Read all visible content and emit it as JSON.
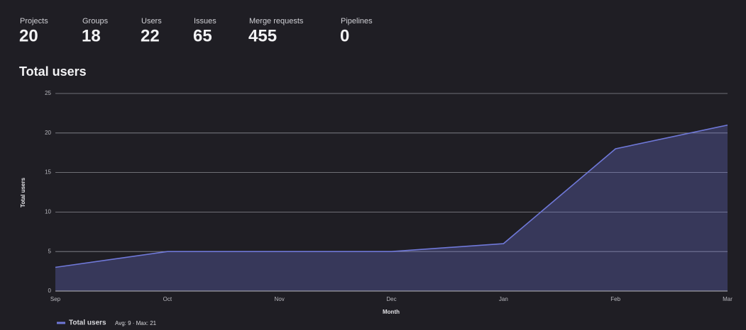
{
  "stats": [
    {
      "label": "Projects",
      "value": 20
    },
    {
      "label": "Groups",
      "value": 18
    },
    {
      "label": "Users",
      "value": 22
    },
    {
      "label": "Issues",
      "value": 65
    },
    {
      "label": "Merge requests",
      "value": 455
    },
    {
      "label": "Pipelines",
      "value": 0
    }
  ],
  "chart_data": {
    "type": "area",
    "title": "Total users",
    "categories": [
      "Sep",
      "Oct",
      "Nov",
      "Dec",
      "Jan",
      "Feb",
      "Mar"
    ],
    "series": [
      {
        "name": "Total users",
        "color": "#6f78d8",
        "values": [
          3,
          5,
          5,
          5,
          6,
          18,
          21
        ]
      }
    ],
    "legend_summary": "Avg: 9 · Max: 21",
    "x_label": "Month",
    "y_label": "Total users",
    "ylim": [
      0,
      25
    ],
    "yticks": [
      0,
      5,
      10,
      15,
      20,
      25
    ],
    "grid": true
  }
}
